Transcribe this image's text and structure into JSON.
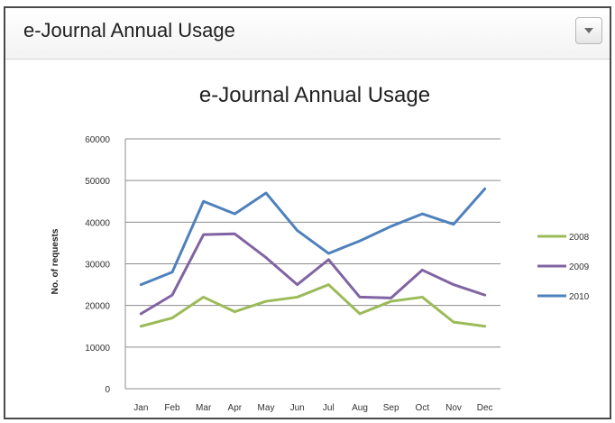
{
  "panel": {
    "title": "e-Journal Annual Usage",
    "menu_icon": "chevron-down-icon"
  },
  "chart_data": {
    "type": "line",
    "title": "e-Journal Annual Usage",
    "xlabel": "",
    "ylabel": "No. of requests",
    "categories": [
      "Jan",
      "Feb",
      "Mar",
      "Apr",
      "May",
      "Jun",
      "Jul",
      "Aug",
      "Sep",
      "Oct",
      "Nov",
      "Dec"
    ],
    "ylim": [
      0,
      60000
    ],
    "yticks": [
      0,
      10000,
      20000,
      30000,
      40000,
      50000,
      60000
    ],
    "grid": true,
    "legend_position": "right",
    "series": [
      {
        "name": "2008",
        "color": "#9bbb59",
        "values": [
          15000,
          17000,
          22000,
          18500,
          21000,
          22000,
          25000,
          18000,
          21000,
          22000,
          16000,
          15000
        ]
      },
      {
        "name": "2009",
        "color": "#8064a2",
        "values": [
          18000,
          22500,
          37000,
          37200,
          31500,
          25000,
          31000,
          22000,
          21800,
          28500,
          25000,
          22500
        ]
      },
      {
        "name": "2010",
        "color": "#4f81bd",
        "values": [
          25000,
          28000,
          45000,
          42000,
          47000,
          38000,
          32500,
          35500,
          39000,
          42000,
          39500,
          48000
        ]
      }
    ]
  }
}
